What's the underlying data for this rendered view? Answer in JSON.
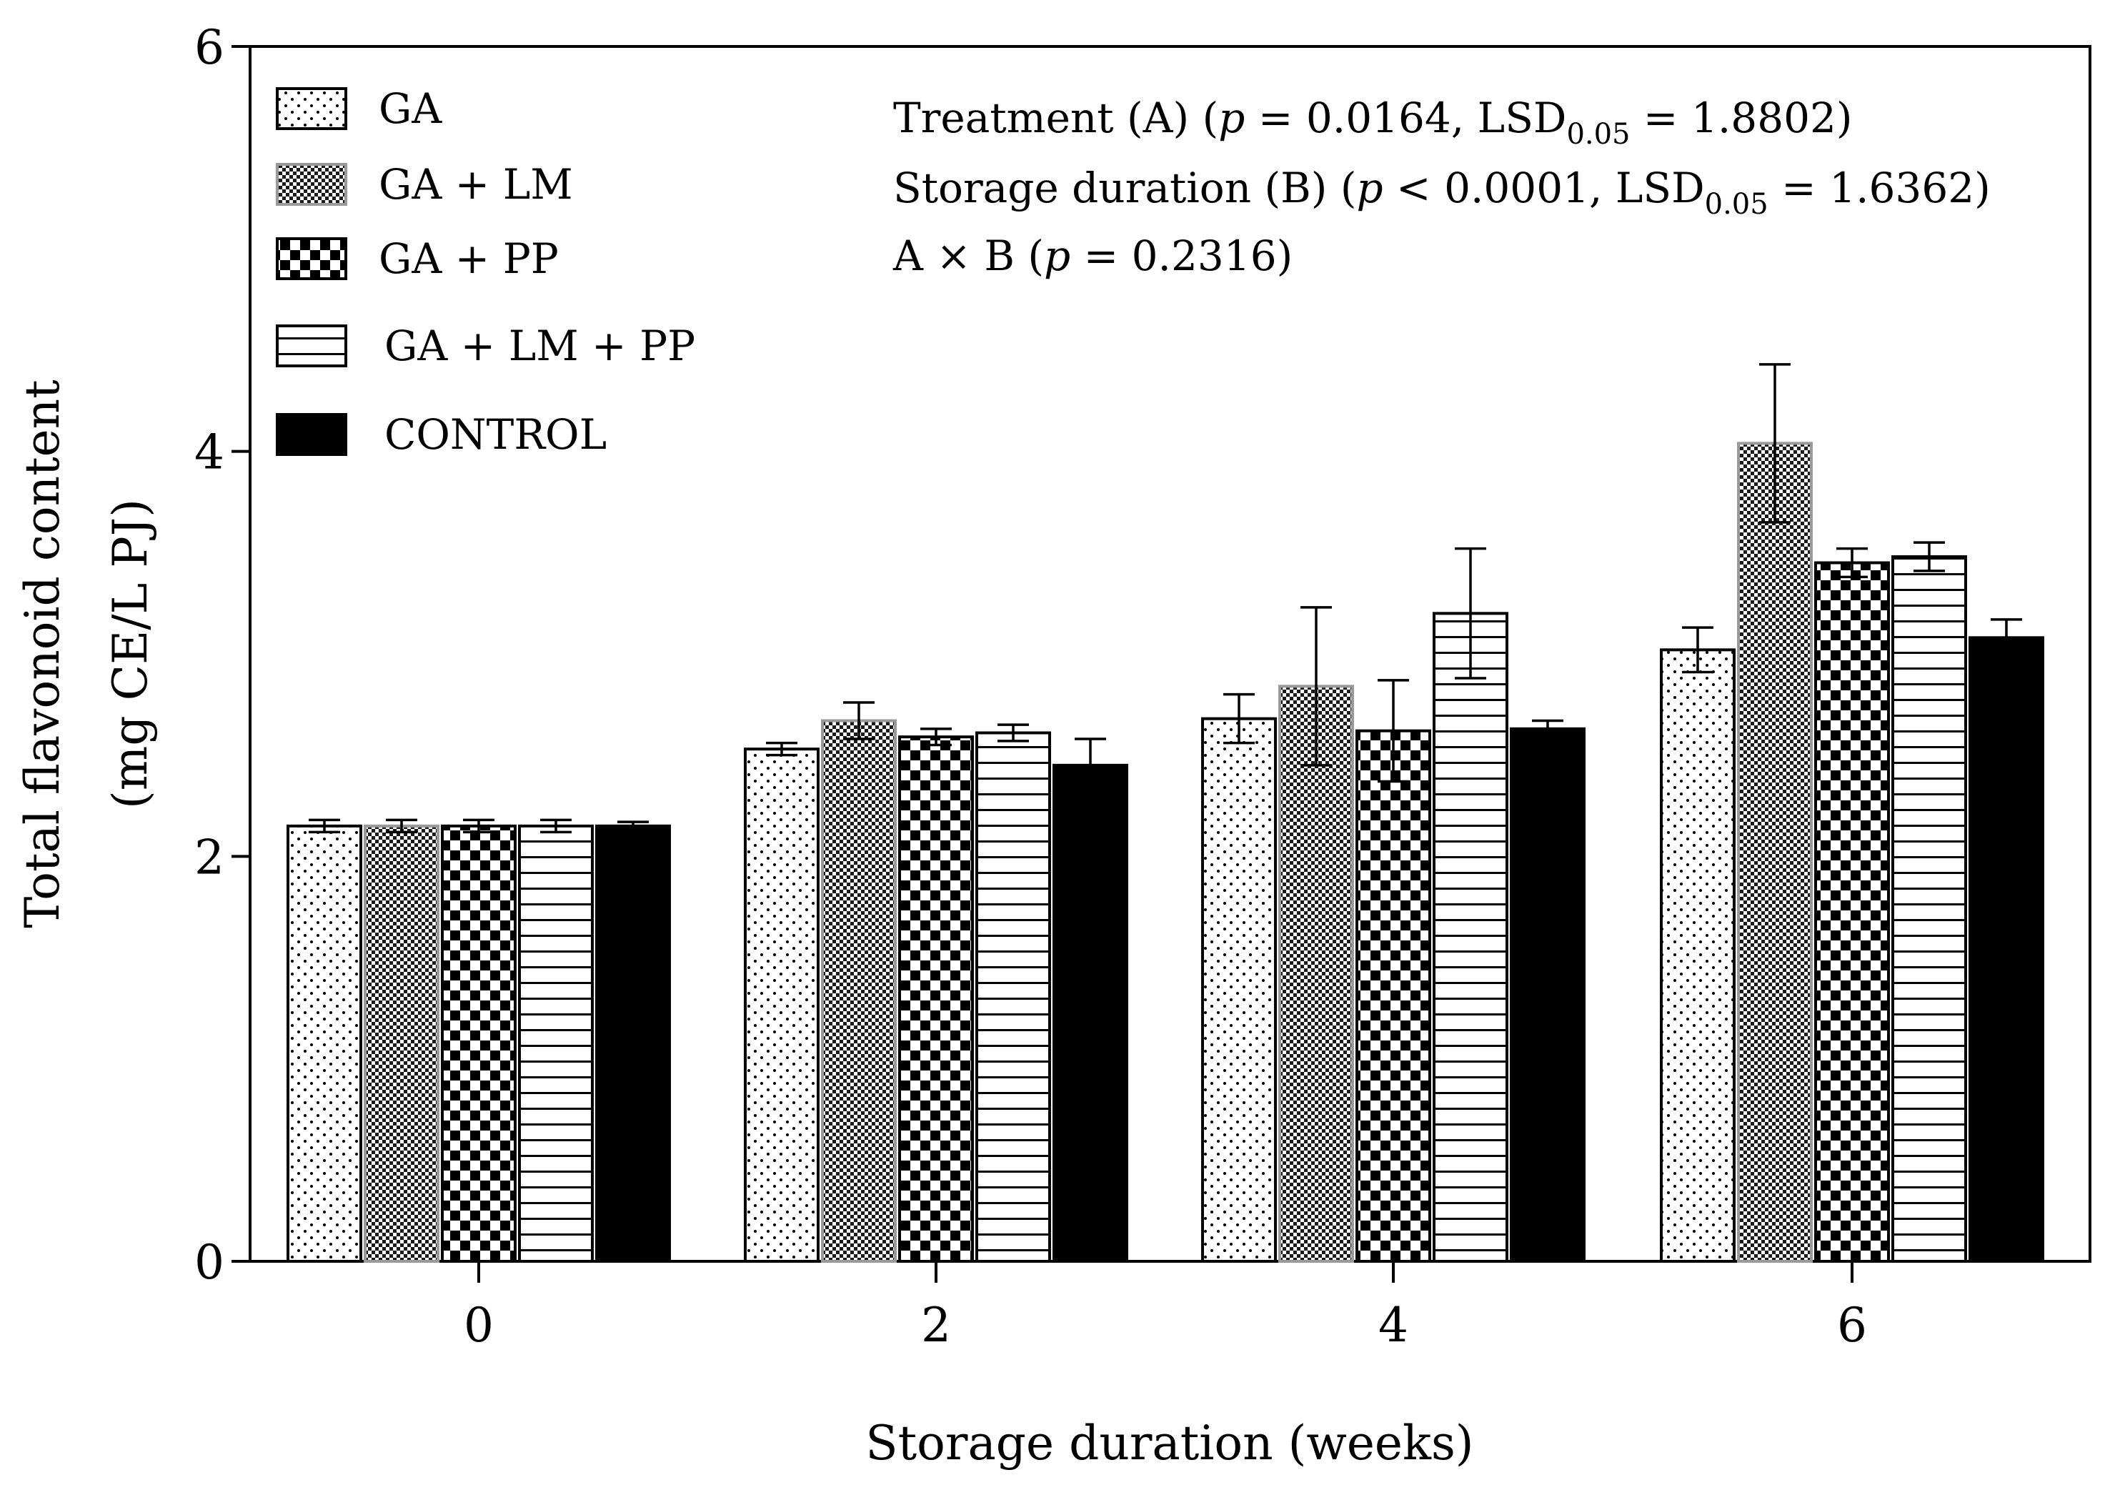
{
  "chart_data": {
    "type": "bar",
    "xlabel": "Storage duration (weeks)",
    "ylabel_line1": "Total flavonoid content",
    "ylabel_line2": "(mg CE/L PJ)",
    "ylim": [
      0,
      6
    ],
    "y_ticks": [
      "0",
      "2",
      "4",
      "6"
    ],
    "categories": [
      "0",
      "2",
      "4",
      "6"
    ],
    "series": [
      {
        "name": "GA",
        "pattern": "dots",
        "values": [
          2.15,
          2.53,
          2.68,
          3.02
        ],
        "errors": [
          0.03,
          0.03,
          0.12,
          0.11
        ]
      },
      {
        "name": "GA + LM",
        "pattern": "fine-checker",
        "values": [
          2.15,
          2.67,
          2.84,
          4.04
        ],
        "errors": [
          0.03,
          0.09,
          0.39,
          0.39
        ]
      },
      {
        "name": "GA + PP",
        "pattern": "checker",
        "values": [
          2.15,
          2.59,
          2.62,
          3.45
        ],
        "errors": [
          0.03,
          0.04,
          0.25,
          0.07
        ]
      },
      {
        "name": "GA + LM + PP",
        "pattern": "hlines",
        "values": [
          2.15,
          2.61,
          3.2,
          3.48
        ],
        "errors": [
          0.03,
          0.04,
          0.32,
          0.07
        ]
      },
      {
        "name": "CONTROL",
        "pattern": "solid",
        "values": [
          2.15,
          2.45,
          2.63,
          3.08
        ],
        "errors": [
          0.02,
          0.13,
          0.04,
          0.09
        ]
      }
    ],
    "annotations": [
      {
        "pre": "Treatment (A) (",
        "p": "p",
        "mid": " = 0.0164, LSD",
        "sub": "0.05",
        "post": " = 1.8802)"
      },
      {
        "pre": "Storage duration (B) (",
        "p": "p",
        "mid": " < 0.0001, LSD",
        "sub": "0.05",
        "post": " = 1.6362)"
      },
      {
        "pre": "A × B (",
        "p": "p",
        "mid": " = 0.2316)",
        "sub": "",
        "post": ""
      }
    ],
    "legend_position": "top-left"
  }
}
